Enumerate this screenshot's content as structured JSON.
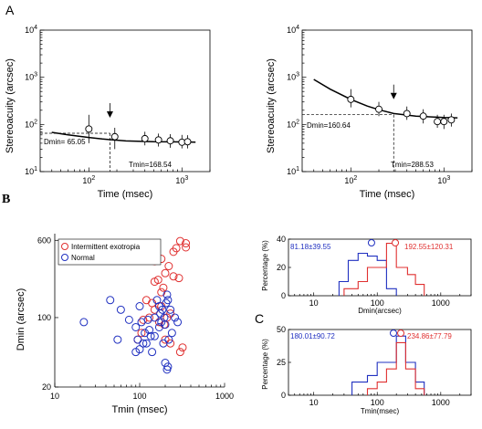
{
  "panel_labels": {
    "a": "A",
    "b": "B",
    "c": "C"
  },
  "chart_data": [
    {
      "id": "A1",
      "type": "line",
      "ylabel": "Stereoacuity (arcsec)",
      "xlabel": "Time (msec)",
      "xscale": "log",
      "yscale": "log",
      "xlim": [
        30,
        2000
      ],
      "ylim": [
        10,
        10000
      ],
      "yticks": [
        "10^1",
        "10^2",
        "10^3",
        "10^4"
      ],
      "xticks": [
        "10^2",
        "10^3"
      ],
      "fit_curve": {
        "x": [
          40,
          60,
          100,
          140,
          168.54,
          250,
          500,
          1000,
          1400
        ],
        "y": [
          68,
          60,
          53,
          49,
          47.5,
          44.8,
          43,
          42.5,
          42
        ]
      },
      "points": {
        "x": [
          100,
          190,
          400,
          560,
          750,
          1000,
          1150
        ],
        "y": [
          80,
          55,
          50,
          47,
          45,
          42,
          43
        ],
        "err": [
          [
            40,
            160
          ],
          [
            30,
            85
          ],
          [
            36,
            70
          ],
          [
            34,
            64
          ],
          [
            32,
            62
          ],
          [
            31,
            60
          ],
          [
            31,
            59
          ]
        ]
      },
      "Dmin_label": "Dmin= 65.05",
      "Dmin": 65.05,
      "Tmin_label": "Tmin=168.54",
      "Tmin": 168.54
    },
    {
      "id": "A2",
      "type": "line",
      "ylabel": "Stereoacuity (arcsec)",
      "xlabel": "Time (msec)",
      "xscale": "log",
      "yscale": "log",
      "xlim": [
        30,
        2000
      ],
      "ylim": [
        10,
        10000
      ],
      "yticks": [
        "10^1",
        "10^2",
        "10^3",
        "10^4"
      ],
      "xticks": [
        "10^2",
        "10^3"
      ],
      "fit_curve": {
        "x": [
          40,
          60,
          100,
          150,
          200,
          288.53,
          500,
          1000,
          1400
        ],
        "y": [
          900,
          560,
          340,
          245,
          205,
          170,
          150,
          140,
          138
        ]
      },
      "points": {
        "x": [
          100,
          200,
          400,
          600,
          850,
          1000,
          1200
        ],
        "y": [
          340,
          210,
          170,
          150,
          115,
          115,
          125
        ],
        "err": [
          [
            230,
            560
          ],
          [
            150,
            300
          ],
          [
            125,
            240
          ],
          [
            105,
            210
          ],
          [
            85,
            160
          ],
          [
            80,
            160
          ],
          [
            90,
            170
          ]
        ]
      },
      "Dmin_label": "Dmin=160.64",
      "Dmin": 160.64,
      "Tmin_label": "Tmin=288.53",
      "Tmin": 288.53
    },
    {
      "id": "B",
      "type": "scatter",
      "xlabel": "Tmin (msec)",
      "ylabel": "Dmin (arcsec)",
      "xscale": "log",
      "yscale": "log",
      "xlim": [
        10,
        1000
      ],
      "ylim": [
        20,
        700
      ],
      "xticks": [
        "10",
        "100",
        "1000"
      ],
      "yticks": [
        "20",
        "100",
        "600"
      ],
      "legend_position": "top-left",
      "series": [
        {
          "name": "Intermittent exotropia",
          "color": "#e03030",
          "x": [
            300,
            350,
            350,
            270,
            250,
            180,
            150,
            220,
            165,
            200,
            250,
            290,
            190,
            150,
            180,
            140,
            120,
            150,
            180,
            230,
            210,
            130,
            110,
            170,
            195,
            105,
            95,
            200,
            230,
            300,
            320
          ],
          "y": [
            590,
            560,
            510,
            500,
            460,
            390,
            370,
            330,
            240,
            280,
            260,
            250,
            200,
            230,
            180,
            140,
            150,
            120,
            130,
            110,
            100,
            100,
            95,
            90,
            85,
            70,
            60,
            60,
            55,
            45,
            50
          ]
        },
        {
          "name": "Normal",
          "color": "#2030c0",
          "x": [
            22,
            45,
            55,
            60,
            75,
            90,
            95,
            100,
            105,
            110,
            115,
            125,
            130,
            135,
            140,
            150,
            160,
            170,
            175,
            180,
            185,
            195,
            200,
            205,
            210,
            215,
            230,
            240,
            260,
            280,
            200,
            210,
            215,
            220,
            190,
            170,
            90,
            100,
            150,
            120
          ],
          "y": [
            90,
            150,
            60,
            120,
            95,
            80,
            60,
            130,
            90,
            55,
            70,
            95,
            75,
            65,
            45,
            100,
            150,
            130,
            110,
            90,
            120,
            100,
            85,
            140,
            170,
            150,
            120,
            70,
            100,
            90,
            35,
            30,
            32,
            60,
            55,
            80,
            45,
            48,
            65,
            55
          ]
        }
      ]
    },
    {
      "id": "B-hist",
      "type": "bar",
      "xlabel": "Dmin(arcsec)",
      "ylabel": "Percentage (%)",
      "xscale": "log",
      "xlim": [
        4,
        3000
      ],
      "ylim": [
        0,
        40
      ],
      "xticks": [
        "10",
        "100",
        "1000"
      ],
      "yticks": [
        "0",
        "20",
        "40"
      ],
      "series": [
        {
          "name": "",
          "color": "#2030c0",
          "edges": [
            25,
            35,
            50,
            70,
            100,
            140,
            200
          ],
          "values": [
            10,
            25,
            30,
            28,
            25,
            5
          ]
        },
        {
          "name": "",
          "color": "#e03030",
          "edges": [
            30,
            50,
            70,
            100,
            140,
            200,
            300,
            400,
            550
          ],
          "values": [
            5,
            10,
            20,
            20,
            37,
            20,
            15,
            8
          ]
        }
      ],
      "annotations": [
        {
          "text": "81.18±39.55",
          "color": "#2030c0",
          "marker_x": 81.18
        },
        {
          "text": "192.55±120.31",
          "color": "#e03030",
          "marker_x": 192.55
        }
      ]
    },
    {
      "id": "C",
      "type": "bar",
      "xlabel": "Tmin(msec)",
      "ylabel": "Percentage (%)",
      "xscale": "log",
      "xlim": [
        4,
        3000
      ],
      "ylim": [
        0,
        50
      ],
      "xticks": [
        "10",
        "100",
        "1000"
      ],
      "yticks": [
        "0",
        "25",
        "50"
      ],
      "series": [
        {
          "name": "",
          "color": "#2030c0",
          "edges": [
            40,
            70,
            100,
            140,
            200,
            280,
            400,
            550
          ],
          "values": [
            10,
            15,
            25,
            25,
            45,
            25,
            10
          ]
        },
        {
          "name": "",
          "color": "#e03030",
          "edges": [
            70,
            100,
            140,
            200,
            280,
            400,
            550
          ],
          "values": [
            5,
            10,
            20,
            40,
            20,
            5
          ]
        }
      ],
      "annotations": [
        {
          "text": "180.01±90.72",
          "color": "#2030c0",
          "marker_x": 180.01
        },
        {
          "text": "234.86±77.79",
          "color": "#e03030",
          "marker_x": 234.86
        }
      ]
    }
  ]
}
